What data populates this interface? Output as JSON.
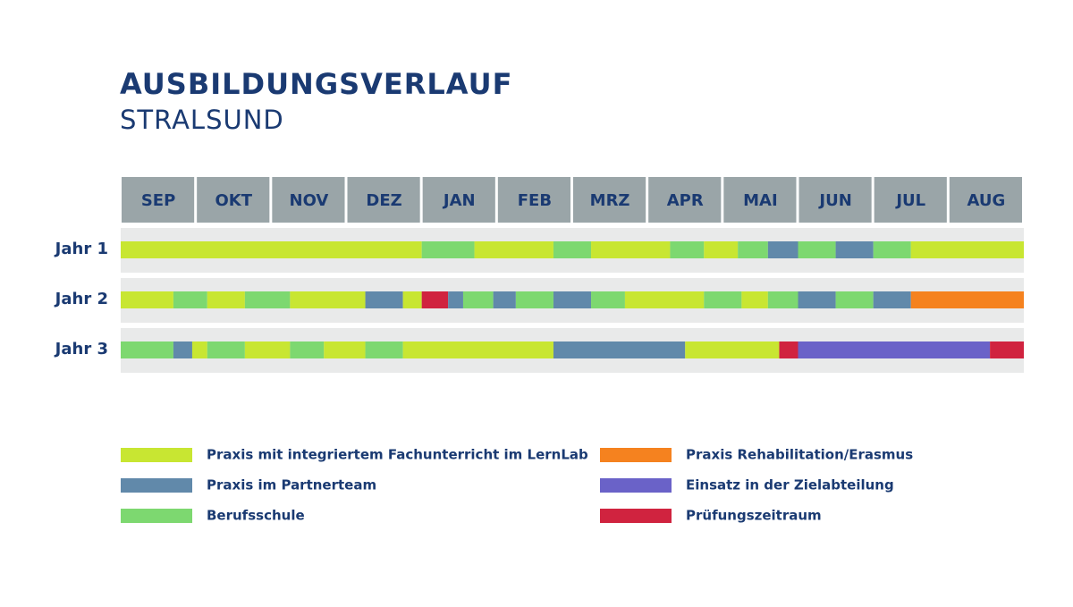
{
  "header": {
    "title": "AUSBILDUNGSVERLAUF",
    "subtitle": "STRALSUND"
  },
  "months": [
    "SEP",
    "OKT",
    "NOV",
    "DEZ",
    "JAN",
    "FEB",
    "MRZ",
    "APR",
    "MAI",
    "JUN",
    "JUL",
    "AUG"
  ],
  "rows": [
    {
      "label": "Jahr 1",
      "segments": [
        {
          "start": 0,
          "end": 4.0,
          "color": "#c8e632"
        },
        {
          "start": 4.0,
          "end": 4.7,
          "color": "#7dd870"
        },
        {
          "start": 4.7,
          "end": 5.75,
          "color": "#c8e632"
        },
        {
          "start": 5.75,
          "end": 6.25,
          "color": "#7dd870"
        },
        {
          "start": 6.25,
          "end": 7.3,
          "color": "#c8e632"
        },
        {
          "start": 7.3,
          "end": 7.75,
          "color": "#7dd870"
        },
        {
          "start": 7.75,
          "end": 8.2,
          "color": "#c8e632"
        },
        {
          "start": 8.2,
          "end": 8.6,
          "color": "#7dd870"
        },
        {
          "start": 8.6,
          "end": 9.0,
          "color": "#6189aa"
        },
        {
          "start": 9.0,
          "end": 9.5,
          "color": "#7dd870"
        },
        {
          "start": 9.5,
          "end": 10.0,
          "color": "#6189aa"
        },
        {
          "start": 10.0,
          "end": 10.5,
          "color": "#7dd870"
        },
        {
          "start": 10.5,
          "end": 12,
          "color": "#c8e632"
        }
      ]
    },
    {
      "label": "Jahr 2",
      "segments": [
        {
          "start": 0,
          "end": 0.7,
          "color": "#c8e632"
        },
        {
          "start": 0.7,
          "end": 1.15,
          "color": "#7dd870"
        },
        {
          "start": 1.15,
          "end": 1.65,
          "color": "#c8e632"
        },
        {
          "start": 1.65,
          "end": 2.25,
          "color": "#7dd870"
        },
        {
          "start": 2.25,
          "end": 3.25,
          "color": "#c8e632"
        },
        {
          "start": 3.25,
          "end": 3.75,
          "color": "#6189aa"
        },
        {
          "start": 3.75,
          "end": 4.0,
          "color": "#c8e632"
        },
        {
          "start": 4.0,
          "end": 4.35,
          "color": "#d0233f"
        },
        {
          "start": 4.35,
          "end": 4.55,
          "color": "#6189aa"
        },
        {
          "start": 4.55,
          "end": 4.95,
          "color": "#7dd870"
        },
        {
          "start": 4.95,
          "end": 5.25,
          "color": "#6189aa"
        },
        {
          "start": 5.25,
          "end": 5.75,
          "color": "#7dd870"
        },
        {
          "start": 5.75,
          "end": 6.25,
          "color": "#6189aa"
        },
        {
          "start": 6.25,
          "end": 6.7,
          "color": "#7dd870"
        },
        {
          "start": 6.7,
          "end": 7.75,
          "color": "#c8e632"
        },
        {
          "start": 7.75,
          "end": 8.25,
          "color": "#7dd870"
        },
        {
          "start": 8.25,
          "end": 8.6,
          "color": "#c8e632"
        },
        {
          "start": 8.6,
          "end": 9.0,
          "color": "#7dd870"
        },
        {
          "start": 9.0,
          "end": 9.5,
          "color": "#6189aa"
        },
        {
          "start": 9.5,
          "end": 10.0,
          "color": "#7dd870"
        },
        {
          "start": 10.0,
          "end": 10.5,
          "color": "#6189aa"
        },
        {
          "start": 10.5,
          "end": 12,
          "color": "#f5821f"
        }
      ]
    },
    {
      "label": "Jahr 3",
      "segments": [
        {
          "start": 0,
          "end": 0.7,
          "color": "#7dd870"
        },
        {
          "start": 0.7,
          "end": 0.95,
          "color": "#6189aa"
        },
        {
          "start": 0.95,
          "end": 1.15,
          "color": "#c8e632"
        },
        {
          "start": 1.15,
          "end": 1.65,
          "color": "#7dd870"
        },
        {
          "start": 1.65,
          "end": 2.25,
          "color": "#c8e632"
        },
        {
          "start": 2.25,
          "end": 2.7,
          "color": "#7dd870"
        },
        {
          "start": 2.7,
          "end": 3.25,
          "color": "#c8e632"
        },
        {
          "start": 3.25,
          "end": 3.75,
          "color": "#7dd870"
        },
        {
          "start": 3.75,
          "end": 5.75,
          "color": "#c8e632"
        },
        {
          "start": 5.75,
          "end": 7.5,
          "color": "#6189aa"
        },
        {
          "start": 7.5,
          "end": 8.75,
          "color": "#c8e632"
        },
        {
          "start": 8.75,
          "end": 9.0,
          "color": "#d0233f"
        },
        {
          "start": 9.0,
          "end": 11.55,
          "color": "#6a62c8"
        },
        {
          "start": 11.55,
          "end": 12,
          "color": "#d0233f"
        }
      ]
    }
  ],
  "legend": [
    {
      "label": "Praxis mit integriertem Fachunterricht im LernLab",
      "color": "#c8e632"
    },
    {
      "label": "Praxis im Partnerteam",
      "color": "#6189aa"
    },
    {
      "label": "Berufsschule",
      "color": "#7dd870"
    },
    {
      "label": "Praxis Rehabilitation/Erasmus",
      "color": "#f5821f"
    },
    {
      "label": "Einsatz in der Zielabteilung",
      "color": "#6a62c8"
    },
    {
      "label": "Prüfungszeitraum",
      "color": "#d0233f"
    }
  ]
}
